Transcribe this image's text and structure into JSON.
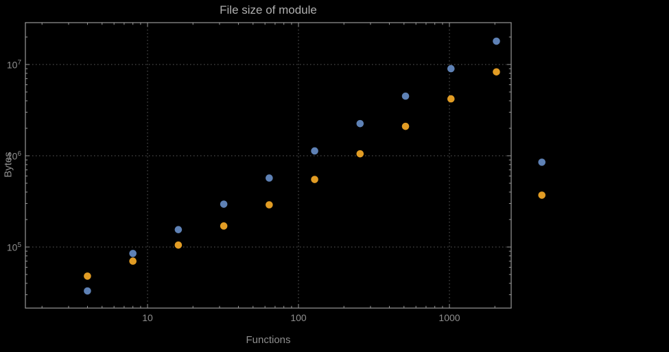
{
  "chart_data": {
    "type": "scatter",
    "title": "File size of module",
    "xlabel": "Functions",
    "ylabel": "Bytes",
    "x_scale": "log",
    "y_scale": "log",
    "grid": "dotted",
    "legend": "none",
    "x": [
      4,
      8,
      16,
      32,
      64,
      128,
      256,
      512,
      1024,
      2048,
      4096
    ],
    "series": [
      {
        "name": "blue",
        "color": "#5e81b5",
        "values": [
          33000,
          85000,
          155000,
          295000,
          570000,
          1130000,
          2250000,
          4500000,
          9000000,
          18000000,
          850000
        ]
      },
      {
        "name": "orange",
        "color": "#e19c24",
        "values": [
          48000,
          70000,
          105000,
          170000,
          290000,
          550000,
          1050000,
          2100000,
          4200000,
          8300000,
          370000
        ]
      }
    ],
    "x_ticks": [
      10,
      100,
      1000
    ],
    "x_tick_labels": [
      "10",
      "100",
      "1000"
    ],
    "y_ticks": [
      100000,
      1000000,
      10000000
    ],
    "y_tick_labels": [
      {
        "base": "10",
        "exp": "5"
      },
      {
        "base": "10",
        "exp": "6"
      },
      {
        "base": "10",
        "exp": "7"
      }
    ],
    "x_range": [
      1.55,
      2565
    ],
    "y_range": [
      21000,
      29000000
    ],
    "colors": {
      "background": "#000000",
      "frame": "#9a9a9a",
      "grid": "#5f5f5f",
      "label": "#8f8f8f",
      "title": "#b0b0b0"
    }
  }
}
